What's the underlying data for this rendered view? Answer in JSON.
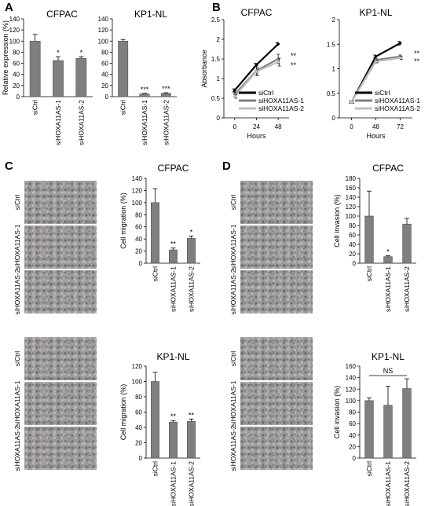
{
  "panel_letters": [
    "A",
    "B",
    "C",
    "D"
  ],
  "image_row_labels": [
    "siCtrl",
    "siHOXA11AS-1",
    "siHOXA11AS-2"
  ],
  "colors": {
    "bar": "#7f7f7f",
    "siCtrl": "#000000",
    "siHOXA11AS-1": "#808080",
    "siHOXA11AS-2": "#c0c0c0",
    "micrograph": "#8f8f8f"
  },
  "chart_data": [
    {
      "id": "A-CFPAC",
      "type": "bar",
      "title": "CFPAC",
      "ylabel": "Relative expression (%)",
      "ylim": [
        0,
        140
      ],
      "yticks": [
        0,
        20,
        40,
        60,
        80,
        100,
        120,
        140
      ],
      "categories": [
        "siCtrl",
        "siHOXA11AS-1",
        "siHOXA11AS-2"
      ],
      "values": [
        100,
        65,
        69
      ],
      "errors": [
        12,
        7,
        3
      ],
      "significance": [
        "",
        "*",
        "*"
      ]
    },
    {
      "id": "A-KP1NL",
      "type": "bar",
      "title": "KP1-NL",
      "ylabel": "",
      "ylim": [
        0,
        140
      ],
      "yticks": [
        0,
        20,
        40,
        60,
        80,
        100,
        120,
        140
      ],
      "categories": [
        "siCtrl",
        "siHOXA11AS-1",
        "siHOXA11AS-2"
      ],
      "values": [
        100,
        5,
        6
      ],
      "errors": [
        3,
        1,
        1
      ],
      "significance": [
        "",
        "***",
        "***"
      ]
    },
    {
      "id": "B-CFPAC",
      "type": "line",
      "title": "CFPAC",
      "ylabel": "Absorbance",
      "xlabel": "Hours",
      "x": [
        0,
        24,
        48
      ],
      "xticks": [
        0,
        24,
        48
      ],
      "ylim": [
        0,
        2.5
      ],
      "yticks": [
        0,
        0.5,
        1,
        1.5,
        2,
        2.5
      ],
      "legend": "bottom-right",
      "series": [
        {
          "name": "siCtrl",
          "values": [
            0.7,
            1.35,
            1.88
          ],
          "errors": [
            0.04,
            0.04,
            0.04
          ],
          "significance": ""
        },
        {
          "name": "siHOXA11AS-1",
          "values": [
            0.6,
            1.2,
            1.5
          ],
          "errors": [
            0.05,
            0.12,
            0.12
          ],
          "significance": "**"
        },
        {
          "name": "siHOXA11AS-2",
          "values": [
            0.55,
            1.18,
            1.42
          ],
          "errors": [
            0.05,
            0.1,
            0.1
          ],
          "significance": "**"
        }
      ]
    },
    {
      "id": "B-KP1NL",
      "type": "line",
      "title": "KP1-NL",
      "ylabel": "",
      "xlabel": "Hours",
      "x": [
        0,
        48,
        72
      ],
      "xticks": [
        0,
        48,
        72
      ],
      "ylim": [
        0,
        2
      ],
      "yticks": [
        0,
        0.5,
        1,
        1.5,
        2
      ],
      "legend": "bottom-right",
      "series": [
        {
          "name": "siCtrl",
          "values": [
            0.32,
            1.25,
            1.52
          ],
          "errors": [
            0.02,
            0.03,
            0.04
          ],
          "significance": ""
        },
        {
          "name": "siHOXA11AS-1",
          "values": [
            0.32,
            1.18,
            1.25
          ],
          "errors": [
            0.02,
            0.03,
            0.03
          ],
          "significance": "**"
        },
        {
          "name": "siHOXA11AS-2",
          "values": [
            0.32,
            1.15,
            1.22
          ],
          "errors": [
            0.02,
            0.03,
            0.03
          ],
          "significance": "**"
        }
      ]
    },
    {
      "id": "C-CFPAC",
      "type": "bar",
      "title": "CFPAC",
      "ylabel": "Cell migration (%)",
      "ylim": [
        0,
        140
      ],
      "yticks": [
        0,
        20,
        40,
        60,
        80,
        100,
        120,
        140
      ],
      "categories": [
        "siCtrl",
        "siHOXA11AS-1",
        "siHOXA11AS-2"
      ],
      "values": [
        100,
        22,
        41
      ],
      "errors": [
        23,
        3,
        4
      ],
      "significance": [
        "",
        "**",
        "*"
      ]
    },
    {
      "id": "C-KP1NL",
      "type": "bar",
      "title": "KP1-NL",
      "ylabel": "Cell migration (%)",
      "ylim": [
        0,
        120
      ],
      "yticks": [
        0,
        20,
        40,
        60,
        80,
        100,
        120
      ],
      "categories": [
        "siCtrl",
        "siHOXA11AS-1",
        "siHOXA11AS-2"
      ],
      "values": [
        100,
        47,
        48
      ],
      "errors": [
        12,
        2,
        3
      ],
      "significance": [
        "",
        "**",
        "**"
      ]
    },
    {
      "id": "D-CFPAC",
      "type": "bar",
      "title": "CFPAC",
      "ylabel": "Cell invasion (%)",
      "ylim": [
        0,
        180
      ],
      "yticks": [
        0,
        20,
        40,
        60,
        80,
        100,
        120,
        140,
        160,
        180
      ],
      "categories": [
        "siCtrl",
        "siHOXA11AS-1",
        "siHOXA11AS-2"
      ],
      "values": [
        100,
        14,
        83
      ],
      "errors": [
        53,
        2,
        12
      ],
      "significance": [
        "",
        "*",
        ""
      ]
    },
    {
      "id": "D-KP1NL",
      "type": "bar",
      "title": "KP1-NL",
      "ylabel": "Cell invasion (%)",
      "ylim": [
        0,
        160
      ],
      "yticks": [
        0,
        20,
        40,
        60,
        80,
        100,
        120,
        140,
        160
      ],
      "categories": [
        "siCtrl",
        "siHOXA11AS-1",
        "siHOXA11AS-2"
      ],
      "values": [
        100,
        92,
        121
      ],
      "errors": [
        5,
        33,
        17
      ],
      "significance": [
        "",
        "",
        ""
      ],
      "bracket": "NS"
    }
  ]
}
